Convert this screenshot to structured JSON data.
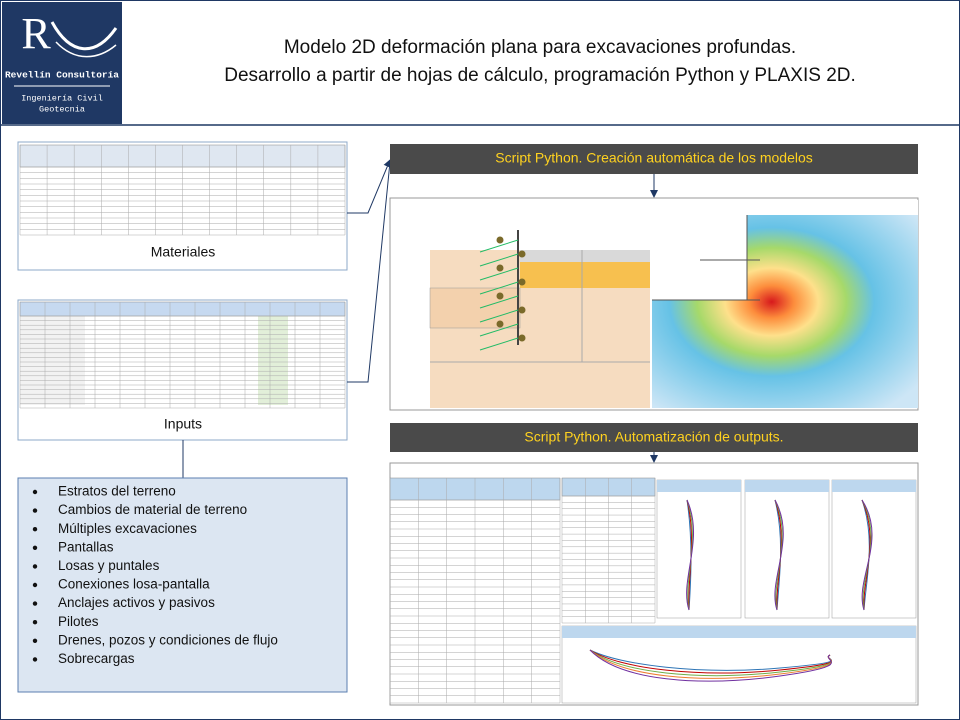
{
  "header": {
    "logo_letter": "R",
    "company": "Revellín Consultoría",
    "tagline": [
      "Ingeniería Civil",
      "Geotecnia"
    ],
    "title": [
      "Modelo 2D deformación plana para excavaciones profundas.",
      "Desarrollo a partir de hojas de cálculo, programación Python y PLAXIS 2D."
    ]
  },
  "panels": {
    "materials": "Materiales",
    "inputs": "Inputs"
  },
  "features": [
    "Estratos del terreno",
    "Cambios de material de terreno",
    "Múltiples excavaciones",
    "Pantallas",
    "Losas y puntales",
    "Conexiones losa-pantalla",
    "Anclajes activos y pasivos",
    "Pilotes",
    "Drenes, pozos y condiciones de flujo",
    "Sobrecargas"
  ],
  "steps": [
    "Script Python. Creación automática de los modelos",
    "Script Python. Automatización de outputs."
  ]
}
